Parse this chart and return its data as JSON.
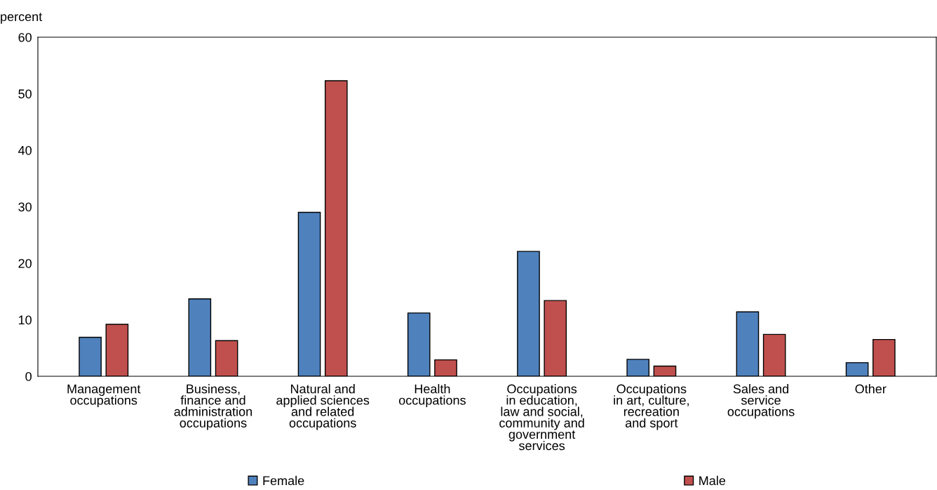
{
  "chart_data": {
    "type": "bar",
    "ylabel": "percent",
    "categories": [
      "Management\noccupations",
      "Business,\nfinance and\nadministration\noccupations",
      "Natural and\napplied sciences\nand related\noccupations",
      "Health\noccupations",
      "Occupations\nin education,\nlaw and social,\ncommunity and\ngovernment\nservices",
      "Occupations\nin art, culture,\nrecreation\nand sport",
      "Sales and\nservice\noccupations",
      "Other"
    ],
    "series": [
      {
        "name": "Female",
        "color": "#4f81bd",
        "values": [
          6.9,
          13.7,
          29.0,
          11.2,
          22.1,
          3.0,
          11.4,
          2.4
        ]
      },
      {
        "name": "Male",
        "color": "#c0504d",
        "values": [
          9.2,
          6.3,
          52.3,
          2.9,
          13.4,
          1.8,
          7.4,
          6.5
        ]
      }
    ],
    "ylim": [
      0,
      60
    ],
    "yticks": [
      0,
      10,
      20,
      30,
      40,
      50,
      60
    ],
    "grid": false,
    "legend": "bottom"
  }
}
